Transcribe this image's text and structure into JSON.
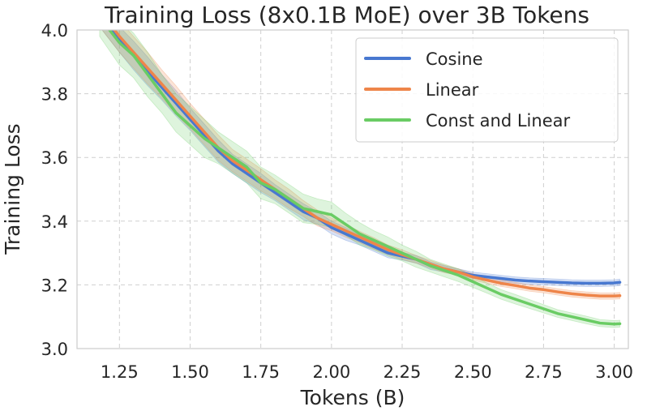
{
  "chart_data": {
    "type": "line",
    "title": "Training Loss (8x0.1B MoE) over 3B Tokens",
    "xlabel": "Tokens (B)",
    "ylabel": "Training Loss",
    "xlim": [
      1.1,
      3.05
    ],
    "ylim": [
      3.0,
      4.0
    ],
    "xticks": [
      1.25,
      1.5,
      1.75,
      2.0,
      2.25,
      2.5,
      2.75,
      3.0
    ],
    "xtick_labels": [
      "1.25",
      "1.50",
      "1.75",
      "2.00",
      "2.25",
      "2.50",
      "2.75",
      "3.00"
    ],
    "yticks": [
      3.0,
      3.2,
      3.4,
      3.6,
      3.8,
      4.0
    ],
    "ytick_labels": [
      "3.0",
      "3.2",
      "3.4",
      "3.6",
      "3.8",
      "4.0"
    ],
    "grid": true,
    "legend_position": "top-right",
    "series": [
      {
        "name": "Cosine",
        "color": "#4878d0",
        "x": [
          1.18,
          1.25,
          1.3,
          1.35,
          1.4,
          1.45,
          1.5,
          1.55,
          1.6,
          1.65,
          1.7,
          1.75,
          1.8,
          1.85,
          1.9,
          1.95,
          2.0,
          2.05,
          2.1,
          2.15,
          2.2,
          2.25,
          2.3,
          2.35,
          2.4,
          2.45,
          2.5,
          2.55,
          2.6,
          2.65,
          2.7,
          2.75,
          2.8,
          2.85,
          2.9,
          2.95,
          3.0,
          3.02
        ],
        "y": [
          4.05,
          3.97,
          3.92,
          3.87,
          3.82,
          3.77,
          3.72,
          3.67,
          3.62,
          3.58,
          3.55,
          3.52,
          3.49,
          3.46,
          3.43,
          3.41,
          3.38,
          3.36,
          3.34,
          3.32,
          3.3,
          3.29,
          3.28,
          3.26,
          3.25,
          3.24,
          3.23,
          3.225,
          3.22,
          3.215,
          3.212,
          3.21,
          3.208,
          3.206,
          3.205,
          3.205,
          3.206,
          3.208
        ],
        "band": [
          0.04,
          0.04,
          0.045,
          0.045,
          0.04,
          0.04,
          0.035,
          0.035,
          0.035,
          0.03,
          0.03,
          0.03,
          0.025,
          0.025,
          0.025,
          0.02,
          0.02,
          0.02,
          0.015,
          0.015,
          0.015,
          0.012,
          0.012,
          0.012,
          0.01,
          0.01,
          0.01,
          0.01,
          0.01,
          0.01,
          0.01,
          0.01,
          0.01,
          0.01,
          0.01,
          0.01,
          0.01,
          0.01
        ]
      },
      {
        "name": "Linear",
        "color": "#ee854a",
        "x": [
          1.18,
          1.25,
          1.3,
          1.35,
          1.4,
          1.45,
          1.5,
          1.55,
          1.6,
          1.65,
          1.7,
          1.75,
          1.8,
          1.85,
          1.9,
          1.95,
          2.0,
          2.05,
          2.1,
          2.15,
          2.2,
          2.25,
          2.3,
          2.35,
          2.4,
          2.45,
          2.5,
          2.55,
          2.6,
          2.65,
          2.7,
          2.75,
          2.8,
          2.85,
          2.9,
          2.95,
          3.0,
          3.02
        ],
        "y": [
          4.06,
          3.98,
          3.93,
          3.88,
          3.83,
          3.78,
          3.73,
          3.68,
          3.63,
          3.59,
          3.56,
          3.53,
          3.5,
          3.47,
          3.44,
          3.41,
          3.39,
          3.37,
          3.35,
          3.33,
          3.31,
          3.295,
          3.28,
          3.265,
          3.25,
          3.24,
          3.225,
          3.215,
          3.205,
          3.198,
          3.19,
          3.185,
          3.178,
          3.172,
          3.168,
          3.165,
          3.165,
          3.166
        ],
        "band": [
          0.05,
          0.05,
          0.05,
          0.05,
          0.045,
          0.045,
          0.04,
          0.04,
          0.04,
          0.035,
          0.035,
          0.035,
          0.03,
          0.03,
          0.025,
          0.025,
          0.02,
          0.02,
          0.018,
          0.018,
          0.015,
          0.015,
          0.012,
          0.012,
          0.012,
          0.01,
          0.01,
          0.01,
          0.01,
          0.01,
          0.01,
          0.01,
          0.01,
          0.01,
          0.01,
          0.01,
          0.01,
          0.01
        ]
      },
      {
        "name": "Const and Linear",
        "color": "#6acc64",
        "x": [
          1.18,
          1.25,
          1.3,
          1.35,
          1.4,
          1.45,
          1.5,
          1.55,
          1.6,
          1.65,
          1.7,
          1.75,
          1.8,
          1.85,
          1.9,
          1.95,
          2.0,
          2.05,
          2.1,
          2.15,
          2.2,
          2.25,
          2.3,
          2.35,
          2.4,
          2.45,
          2.5,
          2.55,
          2.6,
          2.65,
          2.7,
          2.75,
          2.8,
          2.85,
          2.9,
          2.95,
          3.0,
          3.02
        ],
        "y": [
          4.04,
          3.96,
          3.92,
          3.86,
          3.8,
          3.74,
          3.7,
          3.66,
          3.63,
          3.6,
          3.57,
          3.52,
          3.5,
          3.47,
          3.44,
          3.43,
          3.42,
          3.39,
          3.36,
          3.34,
          3.32,
          3.3,
          3.28,
          3.26,
          3.245,
          3.23,
          3.21,
          3.19,
          3.17,
          3.155,
          3.14,
          3.125,
          3.11,
          3.1,
          3.09,
          3.08,
          3.077,
          3.078
        ],
        "band": [
          0.06,
          0.07,
          0.07,
          0.07,
          0.06,
          0.06,
          0.06,
          0.06,
          0.05,
          0.05,
          0.05,
          0.05,
          0.045,
          0.045,
          0.045,
          0.04,
          0.04,
          0.035,
          0.035,
          0.03,
          0.03,
          0.025,
          0.025,
          0.02,
          0.02,
          0.02,
          0.018,
          0.016,
          0.015,
          0.015,
          0.014,
          0.013,
          0.012,
          0.012,
          0.012,
          0.011,
          0.011,
          0.011
        ]
      }
    ]
  }
}
